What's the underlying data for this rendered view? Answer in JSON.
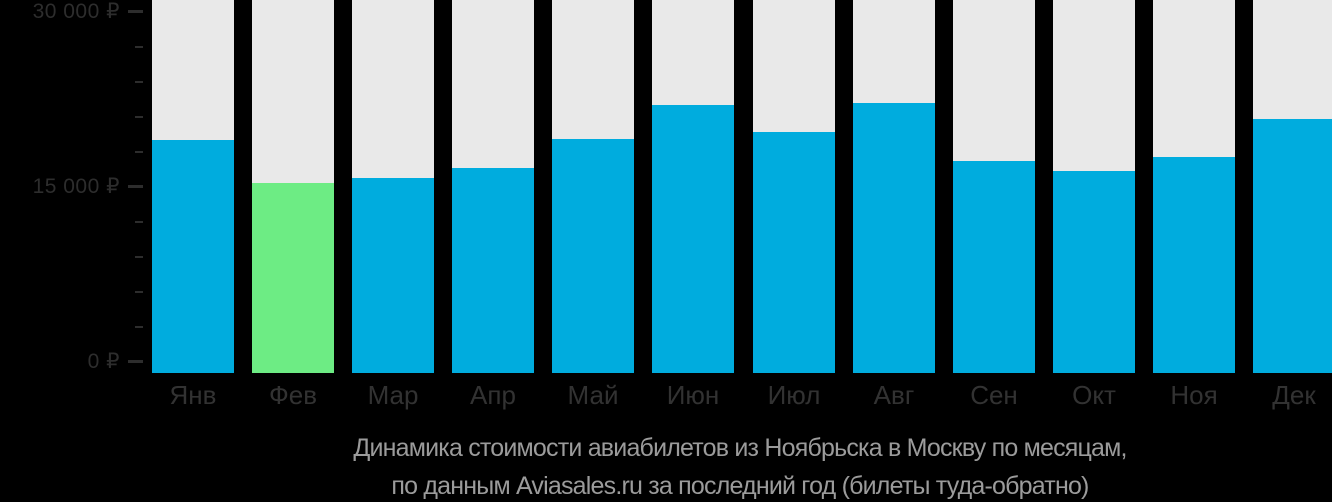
{
  "chart_data": {
    "type": "bar",
    "title": "Динамика стоимости авиабилетов из Ноябрьска в Москву по месяцам,",
    "subtitle": "по данным Aviasales.ru за последний год (билеты туда-обратно)",
    "categories": [
      "Янв",
      "Фев",
      "Мар",
      "Апр",
      "Май",
      "Июн",
      "Июл",
      "Авг",
      "Сен",
      "Окт",
      "Ноя",
      "Дек"
    ],
    "values": [
      20000,
      16300,
      16700,
      17600,
      20100,
      23000,
      20700,
      23200,
      18200,
      17300,
      18500,
      21800
    ],
    "currency": "₽",
    "highlight_index": 1,
    "colors": {
      "bar": "#00acde",
      "highlight": "#6dec84",
      "track": "#e9e9e9",
      "axis_text": "#2d2d2d",
      "month_text": "#323232",
      "caption_text": "#9b9b9b",
      "background": "#000000"
    },
    "y_axis": {
      "ticks": [
        {
          "label": "30 000 ₽",
          "value": 30000
        },
        {
          "label": "15 000 ₽",
          "value": 15000
        },
        {
          "label": "0 ₽",
          "value": 0
        }
      ],
      "minor_step": 3000,
      "max_display": 32000
    },
    "xlabel": "",
    "ylabel": "",
    "legend": "none",
    "grid": "off"
  }
}
